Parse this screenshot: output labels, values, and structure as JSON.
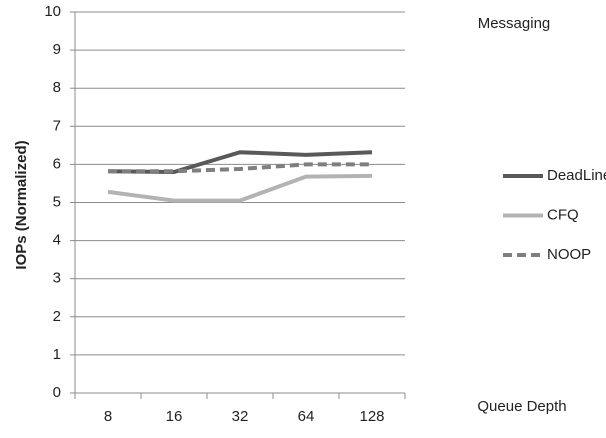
{
  "chart_data": {
    "type": "line",
    "title": "Messaging",
    "x_label": "Queue Depth",
    "y_label": "IOPs (Normalized)",
    "categories": [
      "8",
      "16",
      "32",
      "64",
      "128"
    ],
    "series": [
      {
        "name": "DeadLine",
        "color": "#595959",
        "dashed": false,
        "values": [
          5.82,
          5.8,
          6.32,
          6.25,
          6.32
        ]
      },
      {
        "name": "CFQ",
        "color": "#b3b3b3",
        "dashed": false,
        "values": [
          5.28,
          5.05,
          5.05,
          5.68,
          5.7
        ]
      },
      {
        "name": "NOOP",
        "color": "#7f7f7f",
        "dashed": true,
        "values": [
          5.82,
          5.82,
          5.88,
          6.0,
          6.0
        ]
      }
    ],
    "ylim": [
      0,
      10
    ],
    "yticks": [
      0,
      1,
      2,
      3,
      4,
      5,
      6,
      7,
      8,
      9,
      10
    ],
    "grid": true,
    "legend": "right"
  }
}
